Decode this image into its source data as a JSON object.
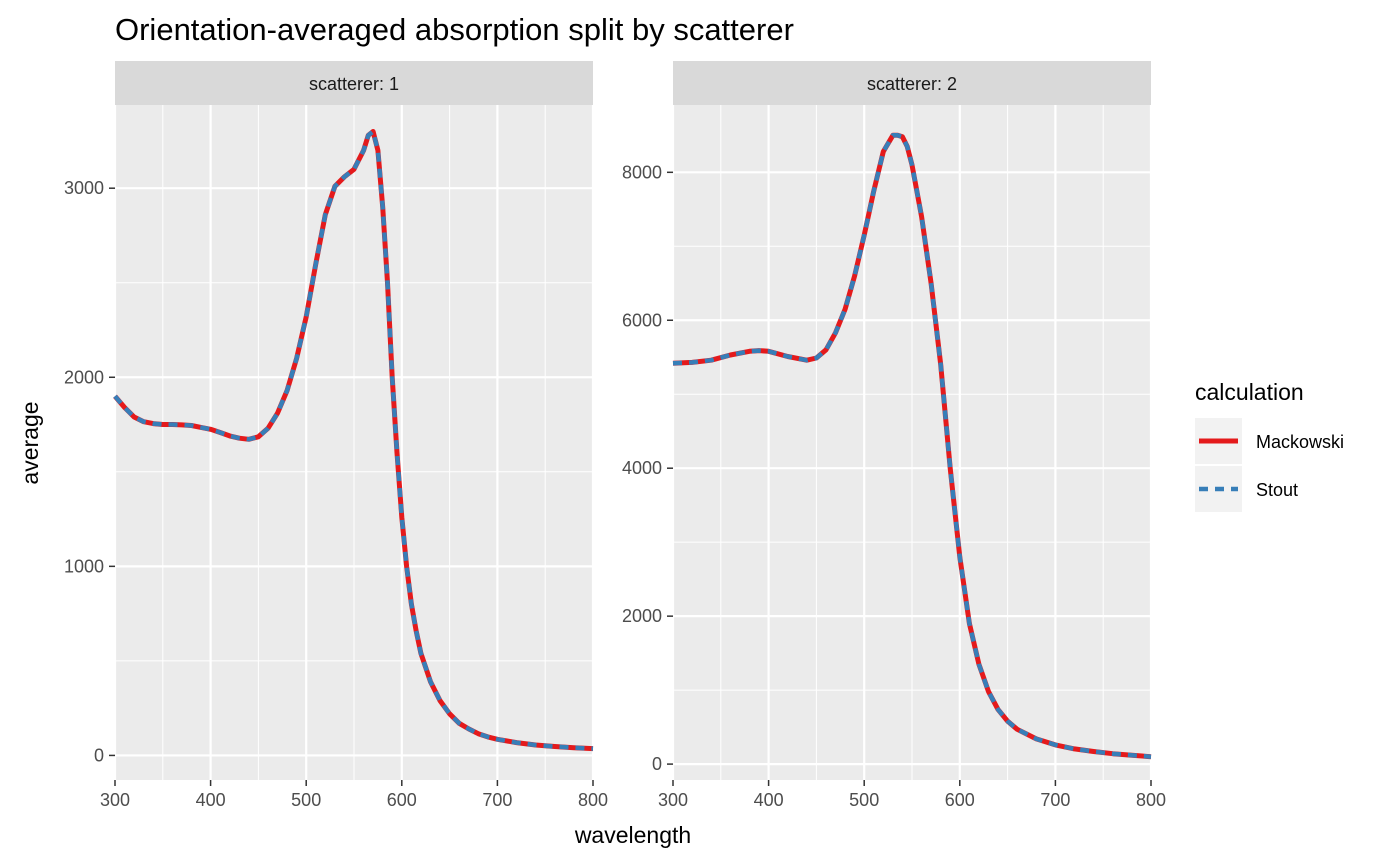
{
  "chart_data": {
    "type": "line",
    "title": "Orientation-averaged absorption split by scatterer",
    "xlabel": "wavelength",
    "ylabel": "average",
    "legend": {
      "title": "calculation",
      "position": "right",
      "entries": [
        {
          "name": "Mackowski",
          "color": "#e41a1c",
          "dash": "solid"
        },
        {
          "name": "Stout",
          "color": "#377eb8",
          "dash": "dashed"
        }
      ]
    },
    "grid": true,
    "panels": [
      {
        "strip": "scatterer: 1",
        "xlim": [
          300,
          800
        ],
        "ylim": [
          -130,
          3440
        ],
        "xticks": [
          300,
          400,
          500,
          600,
          700,
          800
        ],
        "yticks": [
          0,
          1000,
          2000,
          3000
        ],
        "series": [
          {
            "name": "Mackowski",
            "x": [
              300,
              310,
              320,
              330,
              340,
              350,
              360,
              370,
              380,
              390,
              400,
              410,
              420,
              430,
              440,
              450,
              460,
              470,
              480,
              490,
              500,
              510,
              520,
              530,
              540,
              550,
              560,
              565,
              570,
              575,
              580,
              585,
              590,
              595,
              600,
              605,
              610,
              615,
              620,
              630,
              640,
              650,
              660,
              670,
              680,
              690,
              700,
              720,
              740,
              760,
              780,
              800
            ],
            "y": [
              1900,
              1840,
              1790,
              1765,
              1755,
              1750,
              1750,
              1748,
              1745,
              1735,
              1725,
              1708,
              1690,
              1678,
              1672,
              1685,
              1730,
              1810,
              1930,
              2100,
              2320,
              2600,
              2860,
              3010,
              3060,
              3100,
              3200,
              3280,
              3300,
              3200,
              2900,
              2500,
              2000,
              1600,
              1260,
              1000,
              800,
              660,
              540,
              390,
              290,
              220,
              170,
              140,
              115,
              98,
              85,
              68,
              55,
              47,
              41,
              36
            ]
          },
          {
            "name": "Stout",
            "x": [
              300,
              310,
              320,
              330,
              340,
              350,
              360,
              370,
              380,
              390,
              400,
              410,
              420,
              430,
              440,
              450,
              460,
              470,
              480,
              490,
              500,
              510,
              520,
              530,
              540,
              550,
              560,
              565,
              570,
              575,
              580,
              585,
              590,
              595,
              600,
              605,
              610,
              615,
              620,
              630,
              640,
              650,
              660,
              670,
              680,
              690,
              700,
              720,
              740,
              760,
              780,
              800
            ],
            "y": [
              1900,
              1840,
              1790,
              1765,
              1755,
              1750,
              1750,
              1748,
              1745,
              1735,
              1725,
              1708,
              1690,
              1678,
              1672,
              1685,
              1730,
              1810,
              1930,
              2100,
              2320,
              2600,
              2860,
              3010,
              3060,
              3100,
              3200,
              3280,
              3300,
              3200,
              2900,
              2500,
              2000,
              1600,
              1260,
              1000,
              800,
              660,
              540,
              390,
              290,
              220,
              170,
              140,
              115,
              98,
              85,
              68,
              55,
              47,
              41,
              36
            ]
          }
        ]
      },
      {
        "strip": "scatterer: 2",
        "xlim": [
          300,
          800
        ],
        "ylim": [
          -215,
          8910
        ],
        "xticks": [
          300,
          400,
          500,
          600,
          700,
          800
        ],
        "yticks": [
          0,
          2000,
          4000,
          6000,
          8000
        ],
        "series": [
          {
            "name": "Mackowski",
            "x": [
              300,
              320,
              340,
              360,
              380,
              390,
              400,
              420,
              440,
              450,
              460,
              470,
              480,
              490,
              500,
              510,
              520,
              530,
              535,
              540,
              545,
              550,
              560,
              570,
              580,
              590,
              600,
              610,
              620,
              630,
              640,
              650,
              660,
              680,
              700,
              720,
              740,
              760,
              780,
              800
            ],
            "y": [
              5420,
              5430,
              5460,
              5530,
              5580,
              5590,
              5580,
              5510,
              5460,
              5490,
              5600,
              5830,
              6150,
              6600,
              7150,
              7750,
              8280,
              8500,
              8500,
              8480,
              8350,
              8100,
              7400,
              6500,
              5400,
              4000,
              2800,
              1900,
              1350,
              980,
              740,
              580,
              470,
              340,
              260,
              205,
              170,
              140,
              120,
              100
            ]
          },
          {
            "name": "Stout",
            "x": [
              300,
              320,
              340,
              360,
              380,
              390,
              400,
              420,
              440,
              450,
              460,
              470,
              480,
              490,
              500,
              510,
              520,
              530,
              535,
              540,
              545,
              550,
              560,
              570,
              580,
              590,
              600,
              610,
              620,
              630,
              640,
              650,
              660,
              680,
              700,
              720,
              740,
              760,
              780,
              800
            ],
            "y": [
              5420,
              5430,
              5460,
              5530,
              5580,
              5590,
              5580,
              5510,
              5460,
              5490,
              5600,
              5830,
              6150,
              6600,
              7150,
              7750,
              8280,
              8500,
              8500,
              8480,
              8350,
              8100,
              7400,
              6500,
              5400,
              4000,
              2800,
              1900,
              1350,
              980,
              740,
              580,
              470,
              340,
              260,
              205,
              170,
              140,
              120,
              100
            ]
          }
        ]
      }
    ]
  }
}
